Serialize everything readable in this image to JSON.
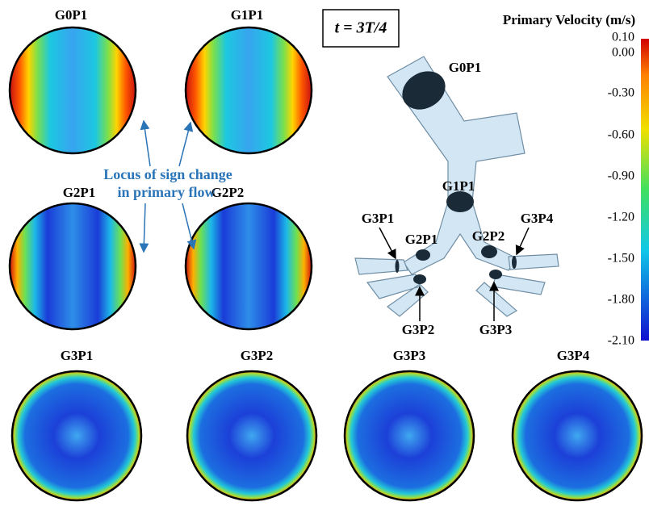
{
  "panels": [
    {
      "label": "G0P1"
    },
    {
      "label": "G1P1"
    },
    {
      "label": "G2P1"
    },
    {
      "label": "G2P2"
    },
    {
      "label": "G3P1"
    },
    {
      "label": "G3P2"
    },
    {
      "label": "G3P3"
    },
    {
      "label": "G3P4"
    }
  ],
  "time_label": "t = 3T/4",
  "annotation": [
    "Locus of sign change",
    "in primary flow"
  ],
  "colorbar": {
    "title": "Primary Velocity (m/s)",
    "ticks": [
      "0.10",
      "0.00",
      "-0.30",
      "-0.60",
      "-0.90",
      "-1.20",
      "-1.50",
      "-1.80",
      "-2.10"
    ]
  },
  "airway_labels": [
    "G0P1",
    "G1P1",
    "G3P1",
    "G2P1",
    "G2P2",
    "G3P4",
    "G3P2",
    "G3P3"
  ]
}
